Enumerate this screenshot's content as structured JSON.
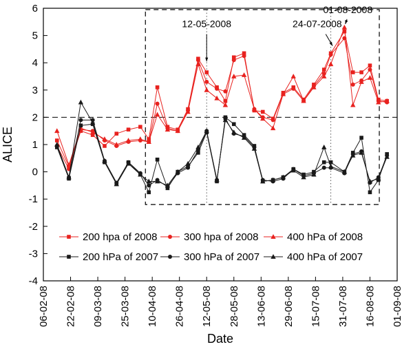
{
  "chart_data": {
    "type": "line",
    "title": "",
    "xlabel": "Date",
    "ylabel": "ALICE",
    "ylim": [
      -4,
      6
    ],
    "grid": false,
    "legend_position": "bottom-inside",
    "colors": {
      "red_2008": "#e8221f",
      "black_2007": "#1a1a1a"
    },
    "y_ticks": [
      6,
      5,
      4,
      3,
      2,
      1,
      0,
      -1,
      -2,
      -3,
      -4
    ],
    "x_tick_labels": [
      "06-02-08",
      "22-02-08",
      "09-03-08",
      "25-03-08",
      "10-04-08",
      "26-04-08",
      "12-05-08",
      "28-05-08",
      "13-06-08",
      "29-06-08",
      "15-07-08",
      "31-07-08",
      "16-08-08",
      "01-09-08"
    ],
    "x_tick_days": [
      0,
      16,
      32,
      48,
      64,
      80,
      96,
      112,
      128,
      144,
      160,
      176,
      192,
      208
    ],
    "x_range_days": [
      0,
      208
    ],
    "reference_line_y": 2,
    "dashed_box": {
      "x_day_start": 60,
      "x_day_end": 197.5,
      "y_min": -1.2,
      "y_max": 5.95
    },
    "dotted_vlines_days": [
      96,
      169
    ],
    "annotations": [
      {
        "label": "12-05-2008",
        "text_x_day": 96,
        "text_y_val": 5.3,
        "arrow_from": {
          "d": 96,
          "v": 5.05
        },
        "arrow_to": {
          "d": 96,
          "v": 4.05
        }
      },
      {
        "label": "24-07-2008",
        "text_x_day": 161,
        "text_y_val": 5.3,
        "arrow_from": {
          "d": 166,
          "v": 5.05
        },
        "arrow_to": {
          "d": 170,
          "v": 4.62
        }
      },
      {
        "label": "01-08-2008",
        "text_x_day": 179,
        "text_y_val": 5.82,
        "arrow_from": {
          "d": 178.5,
          "v": 5.6
        },
        "arrow_to": {
          "d": 177.5,
          "v": 5.42
        }
      }
    ],
    "x_days": [
      8,
      15,
      22,
      29,
      36,
      43,
      50,
      57,
      62,
      67,
      73,
      79,
      85,
      91,
      96,
      102,
      107,
      112,
      118,
      124,
      129,
      135,
      141,
      147,
      153,
      159,
      165,
      169,
      177,
      182,
      187,
      192,
      197,
      202
    ],
    "series": [
      {
        "name": "200 hpa of 2008",
        "color": "#e8221f",
        "marker": "square",
        "values": [
          1.15,
          0.2,
          1.5,
          1.35,
          0.95,
          1.4,
          1.55,
          1.65,
          1.2,
          3.1,
          1.65,
          1.55,
          2.3,
          4.15,
          3.65,
          3.1,
          2.6,
          4.2,
          4.35,
          2.25,
          2.2,
          1.95,
          2.9,
          3.1,
          2.65,
          3.2,
          3.75,
          4.35,
          5.15,
          3.65,
          3.65,
          3.9,
          2.65,
          2.6
        ]
      },
      {
        "name": "300 hpa of 2008",
        "color": "#e8221f",
        "marker": "circle",
        "values": [
          0.95,
          0.1,
          1.55,
          1.5,
          1.15,
          0.95,
          1.1,
          1.15,
          1.1,
          2.5,
          1.6,
          1.5,
          2.25,
          4.1,
          3.3,
          3.05,
          2.95,
          4.1,
          4.25,
          2.3,
          2.0,
          1.9,
          2.85,
          3.05,
          2.6,
          3.15,
          3.6,
          4.3,
          4.9,
          3.2,
          3.35,
          3.75,
          2.6,
          2.55
        ]
      },
      {
        "name": "400 hPa of 2008",
        "color": "#e8221f",
        "marker": "triangle",
        "values": [
          1.5,
          0.25,
          1.6,
          1.45,
          1.2,
          1.0,
          1.15,
          1.2,
          1.1,
          2.1,
          1.55,
          1.5,
          2.2,
          3.95,
          3.0,
          2.7,
          2.45,
          3.5,
          3.55,
          2.3,
          1.95,
          1.6,
          2.85,
          3.5,
          2.6,
          3.1,
          3.5,
          3.95,
          5.3,
          2.45,
          3.3,
          3.45,
          2.55,
          2.6
        ]
      },
      {
        "name": "200 hPa of 2007",
        "color": "#1a1a1a",
        "marker": "square",
        "values": [
          0.9,
          -0.25,
          1.7,
          1.75,
          0.35,
          -0.45,
          0.35,
          -0.1,
          -0.75,
          0.45,
          -0.6,
          0.0,
          0.2,
          0.7,
          1.45,
          -0.35,
          2.0,
          1.75,
          1.35,
          0.95,
          -0.35,
          -0.3,
          -0.2,
          0.1,
          -0.1,
          0.0,
          0.35,
          0.35,
          0.0,
          0.7,
          1.25,
          -0.75,
          -0.3,
          0.65
        ]
      },
      {
        "name": "300 hPa of 2007",
        "color": "#1a1a1a",
        "marker": "circle",
        "values": [
          0.95,
          -0.2,
          1.9,
          1.9,
          0.4,
          -0.4,
          0.35,
          -0.05,
          -0.5,
          -0.3,
          -0.55,
          -0.05,
          0.15,
          0.8,
          1.5,
          -0.3,
          1.95,
          1.4,
          1.3,
          0.9,
          -0.3,
          -0.35,
          -0.25,
          0.1,
          -0.15,
          -0.05,
          0.15,
          0.15,
          -0.05,
          0.65,
          0.75,
          -0.4,
          -0.2,
          0.6
        ]
      },
      {
        "name": "400 hPa of 2007",
        "color": "#1a1a1a",
        "marker": "triangle",
        "values": [
          1.0,
          -0.2,
          2.55,
          1.8,
          0.4,
          -0.45,
          0.3,
          -0.1,
          -0.35,
          -0.35,
          -0.5,
          0.0,
          0.3,
          0.9,
          1.5,
          -0.3,
          1.9,
          1.45,
          1.25,
          0.85,
          -0.35,
          -0.3,
          -0.2,
          0.05,
          -0.2,
          -0.1,
          0.9,
          0.2,
          0.0,
          0.6,
          0.7,
          -0.35,
          -0.25,
          0.55
        ]
      }
    ]
  }
}
